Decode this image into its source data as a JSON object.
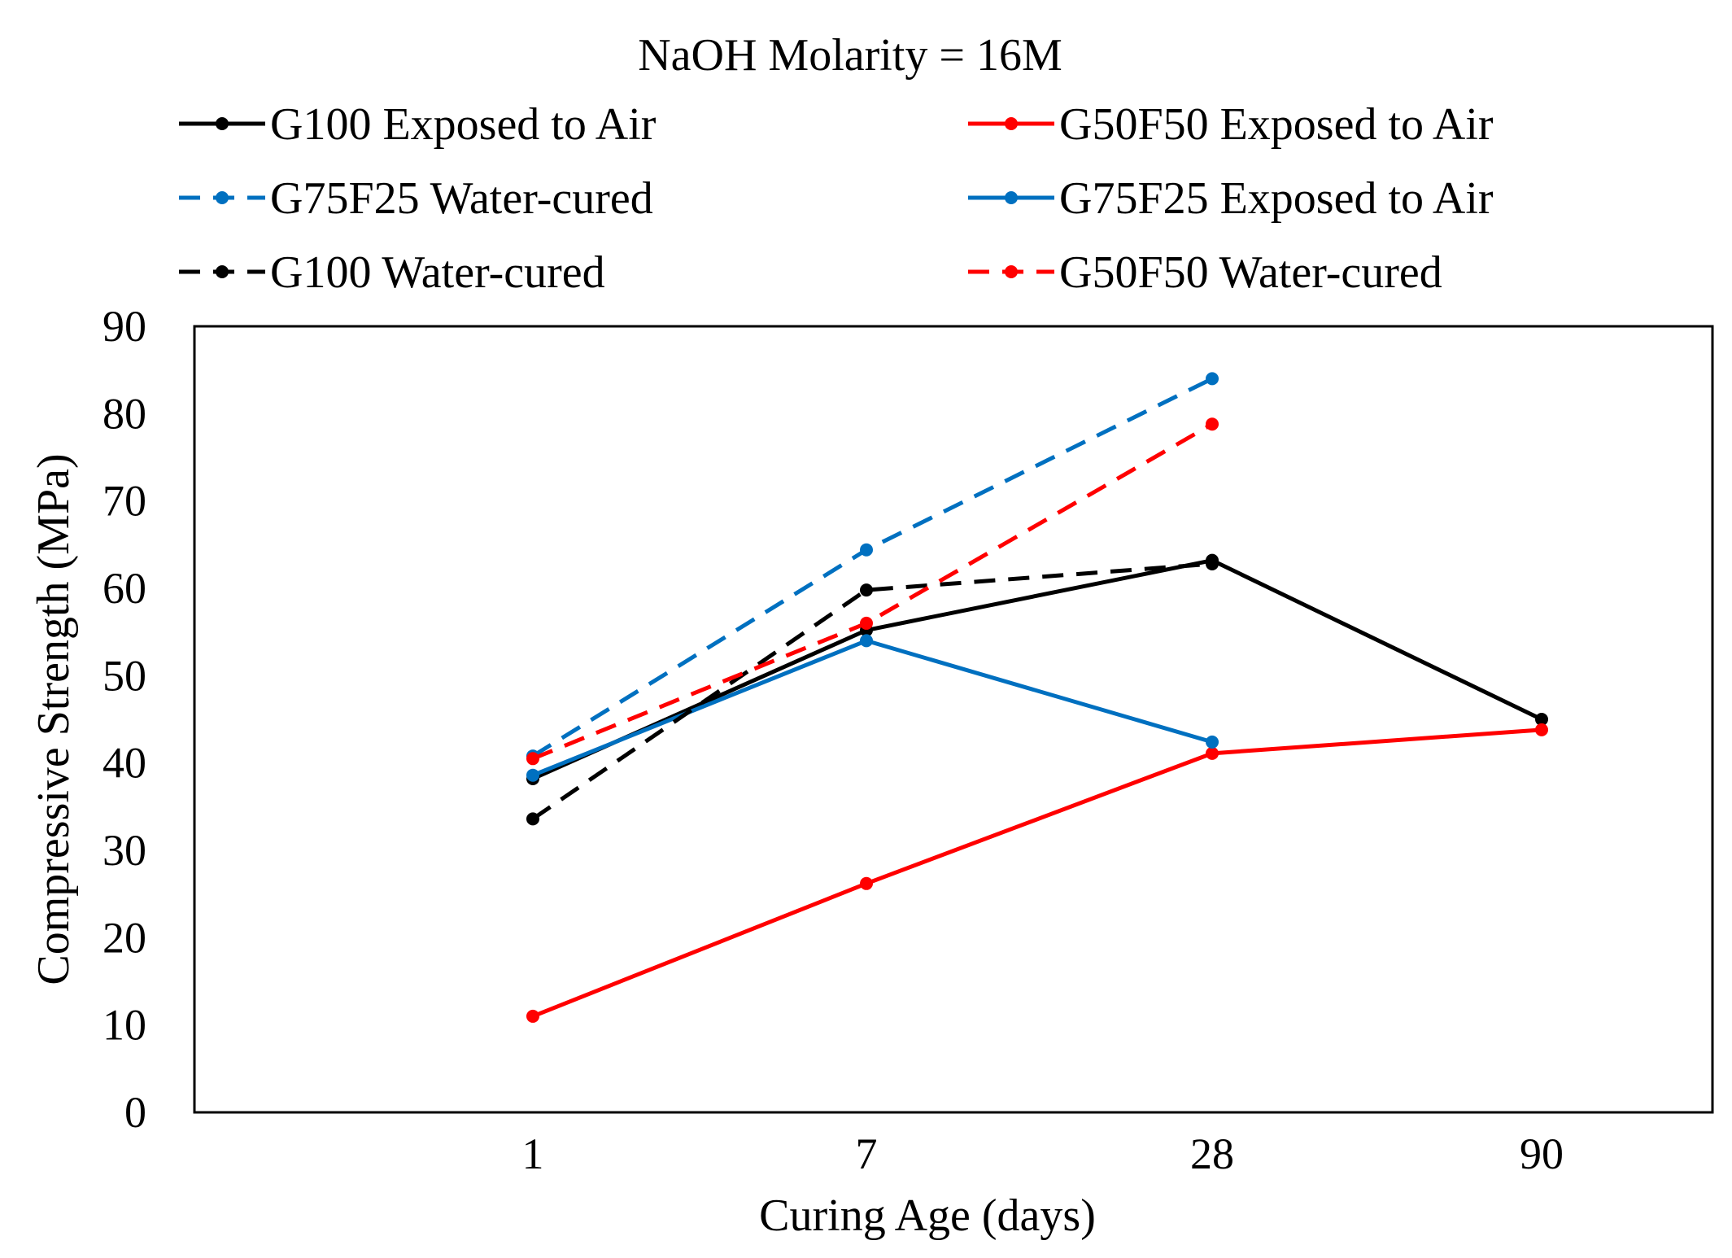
{
  "chart_data": {
    "type": "line",
    "title": "NaOH Molarity = 16M",
    "xlabel": "Curing Age (days)",
    "ylabel": "Compressive Strength (MPa)",
    "categories": [
      "1",
      "7",
      "28",
      "90"
    ],
    "ylim": [
      0,
      90
    ],
    "yticks": [
      0,
      10,
      20,
      30,
      40,
      50,
      60,
      70,
      80,
      90
    ],
    "grid": false,
    "legend_position": "top",
    "series": [
      {
        "name": "G100 Exposed to Air",
        "color": "#000000",
        "dash": "solid",
        "values": [
          38.2,
          55.2,
          63.2,
          45.0
        ]
      },
      {
        "name": "G50F50 Exposed to Air",
        "color": "#ff0000",
        "dash": "solid",
        "values": [
          11.0,
          26.2,
          41.1,
          43.8
        ]
      },
      {
        "name": "G75F25 Water-cured",
        "color": "#0070c0",
        "dash": "dashed",
        "values": [
          40.8,
          64.4,
          84.0,
          null
        ]
      },
      {
        "name": "G75F25 Exposed to Air",
        "color": "#0070c0",
        "dash": "solid",
        "values": [
          38.6,
          54.0,
          42.4,
          null
        ]
      },
      {
        "name": "G100 Water-cured",
        "color": "#000000",
        "dash": "dashed",
        "values": [
          33.6,
          59.8,
          62.8,
          null
        ]
      },
      {
        "name": "G50F50 Water-cured",
        "color": "#ff0000",
        "dash": "dashed",
        "values": [
          40.5,
          56.0,
          78.8,
          null
        ]
      }
    ]
  }
}
